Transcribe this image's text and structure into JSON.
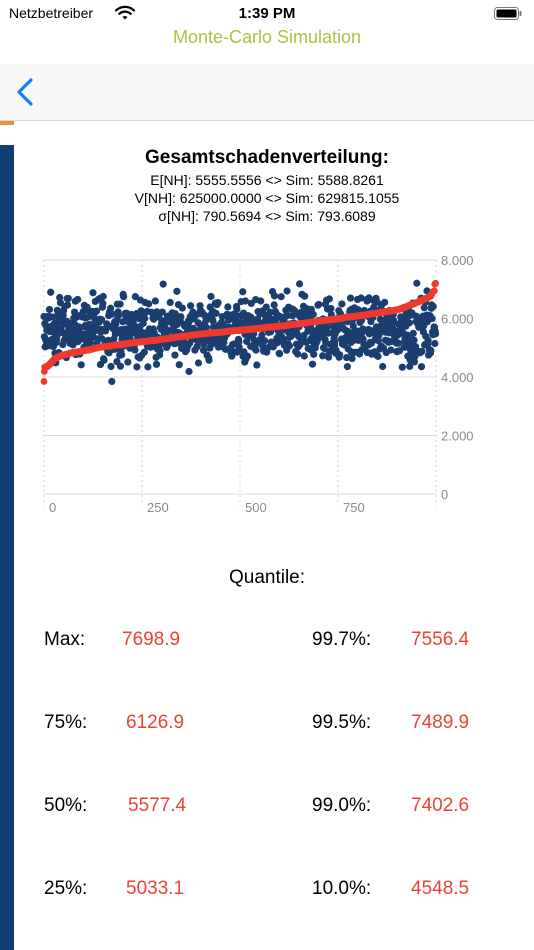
{
  "status_bar": {
    "carrier": "Netzbetreiber",
    "time": "1:39 PM"
  },
  "app_title": "Monte-Carlo Simulation",
  "colors": {
    "title_green": "#a9c43d",
    "rail_blue": "#123e74",
    "dot_blue": "#1b3e70",
    "curve_red": "#f03a2e",
    "back_blue": "#1a7cf5"
  },
  "chart_header": {
    "title": "Gesamtschadenverteilung:",
    "stats": [
      "E[NH]: 5555.5556 <> Sim: 5588.8261",
      "V[NH]: 625000.0000 <> Sim: 629815.1055",
      "σ[NH]: 790.5694 <> Sim: 793.6089"
    ]
  },
  "chart_data": {
    "type": "scatter",
    "x_ticks": [
      "0",
      "250",
      "500",
      "750"
    ],
    "x_tick_values": [
      0,
      250,
      500,
      750
    ],
    "y_ticks": [
      "0",
      "2.000",
      "4.000",
      "6.000",
      "8.000"
    ],
    "y_tick_values": [
      0,
      2000,
      4000,
      6000,
      8000
    ],
    "xlim": [
      0,
      1000
    ],
    "ylim": [
      0,
      8000
    ],
    "grid": true,
    "y_axis_side": "right",
    "n_points": 1000,
    "samples_min": 3150,
    "samples_max": 7698.9,
    "series": [
      {
        "kind": "simulated samples (unsorted)",
        "color": "#1b3e70"
      },
      {
        "kind": "sorted samples",
        "color": "#f03a2e"
      }
    ]
  },
  "quantiles": {
    "title": "Quantile:",
    "rows": [
      {
        "left_label": "Max:",
        "left_value": "7698.9",
        "right_label": "99.7%:",
        "right_value": "7556.4"
      },
      {
        "left_label": "75%:",
        "left_value": "6126.9",
        "right_label": "99.5%:",
        "right_value": "7489.9"
      },
      {
        "left_label": "50%:",
        "left_value": "5577.4",
        "right_label": "99.0%:",
        "right_value": "7402.6"
      },
      {
        "left_label": "25%:",
        "left_value": "5033.1",
        "right_label": "10.0%:",
        "right_value": "4548.5"
      }
    ]
  }
}
